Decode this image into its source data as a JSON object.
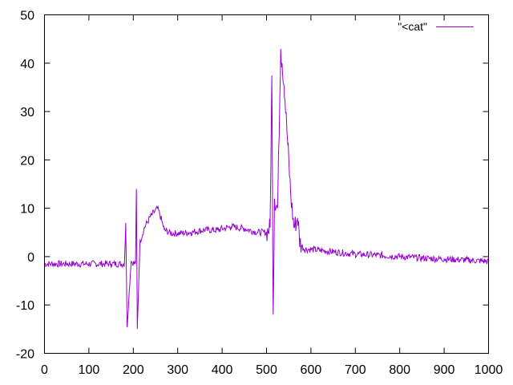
{
  "chart_data": {
    "type": "line",
    "title": "",
    "xlabel": "",
    "ylabel": "",
    "xlim": [
      0,
      1000
    ],
    "ylim": [
      -20,
      50
    ],
    "xticks": [
      0,
      100,
      200,
      300,
      400,
      500,
      600,
      700,
      800,
      900,
      1000
    ],
    "yticks": [
      -20,
      -10,
      0,
      10,
      20,
      30,
      40,
      50
    ],
    "grid": false,
    "legend_position": "top-right",
    "series": [
      {
        "name": "\"<cat\"",
        "color": "#9400d3",
        "x": [
          0,
          50,
          100,
          150,
          180,
          183,
          186,
          195,
          205,
          207,
          209,
          215,
          225,
          240,
          255,
          262,
          270,
          285,
          300,
          330,
          360,
          390,
          420,
          450,
          480,
          500,
          508,
          512,
          515,
          518,
          525,
          532,
          535,
          540,
          548,
          555,
          562,
          570,
          575,
          585,
          600,
          650,
          700,
          750,
          800,
          850,
          900,
          950,
          1000
        ],
        "y": [
          -1.5,
          -1.5,
          -1.5,
          -1.5,
          -1.5,
          7,
          -14.5,
          -1,
          -1.5,
          14,
          -15,
          3,
          6,
          8.5,
          10,
          8,
          5.5,
          4.8,
          4.8,
          5,
          5.5,
          5.5,
          6.2,
          5.8,
          5,
          5,
          6,
          37.5,
          -12,
          12,
          10,
          43,
          40,
          35,
          23,
          12,
          6,
          8,
          3,
          1.5,
          1.5,
          1,
          0.5,
          0.3,
          0,
          -0.3,
          -0.5,
          -0.7,
          -1
        ]
      }
    ]
  }
}
